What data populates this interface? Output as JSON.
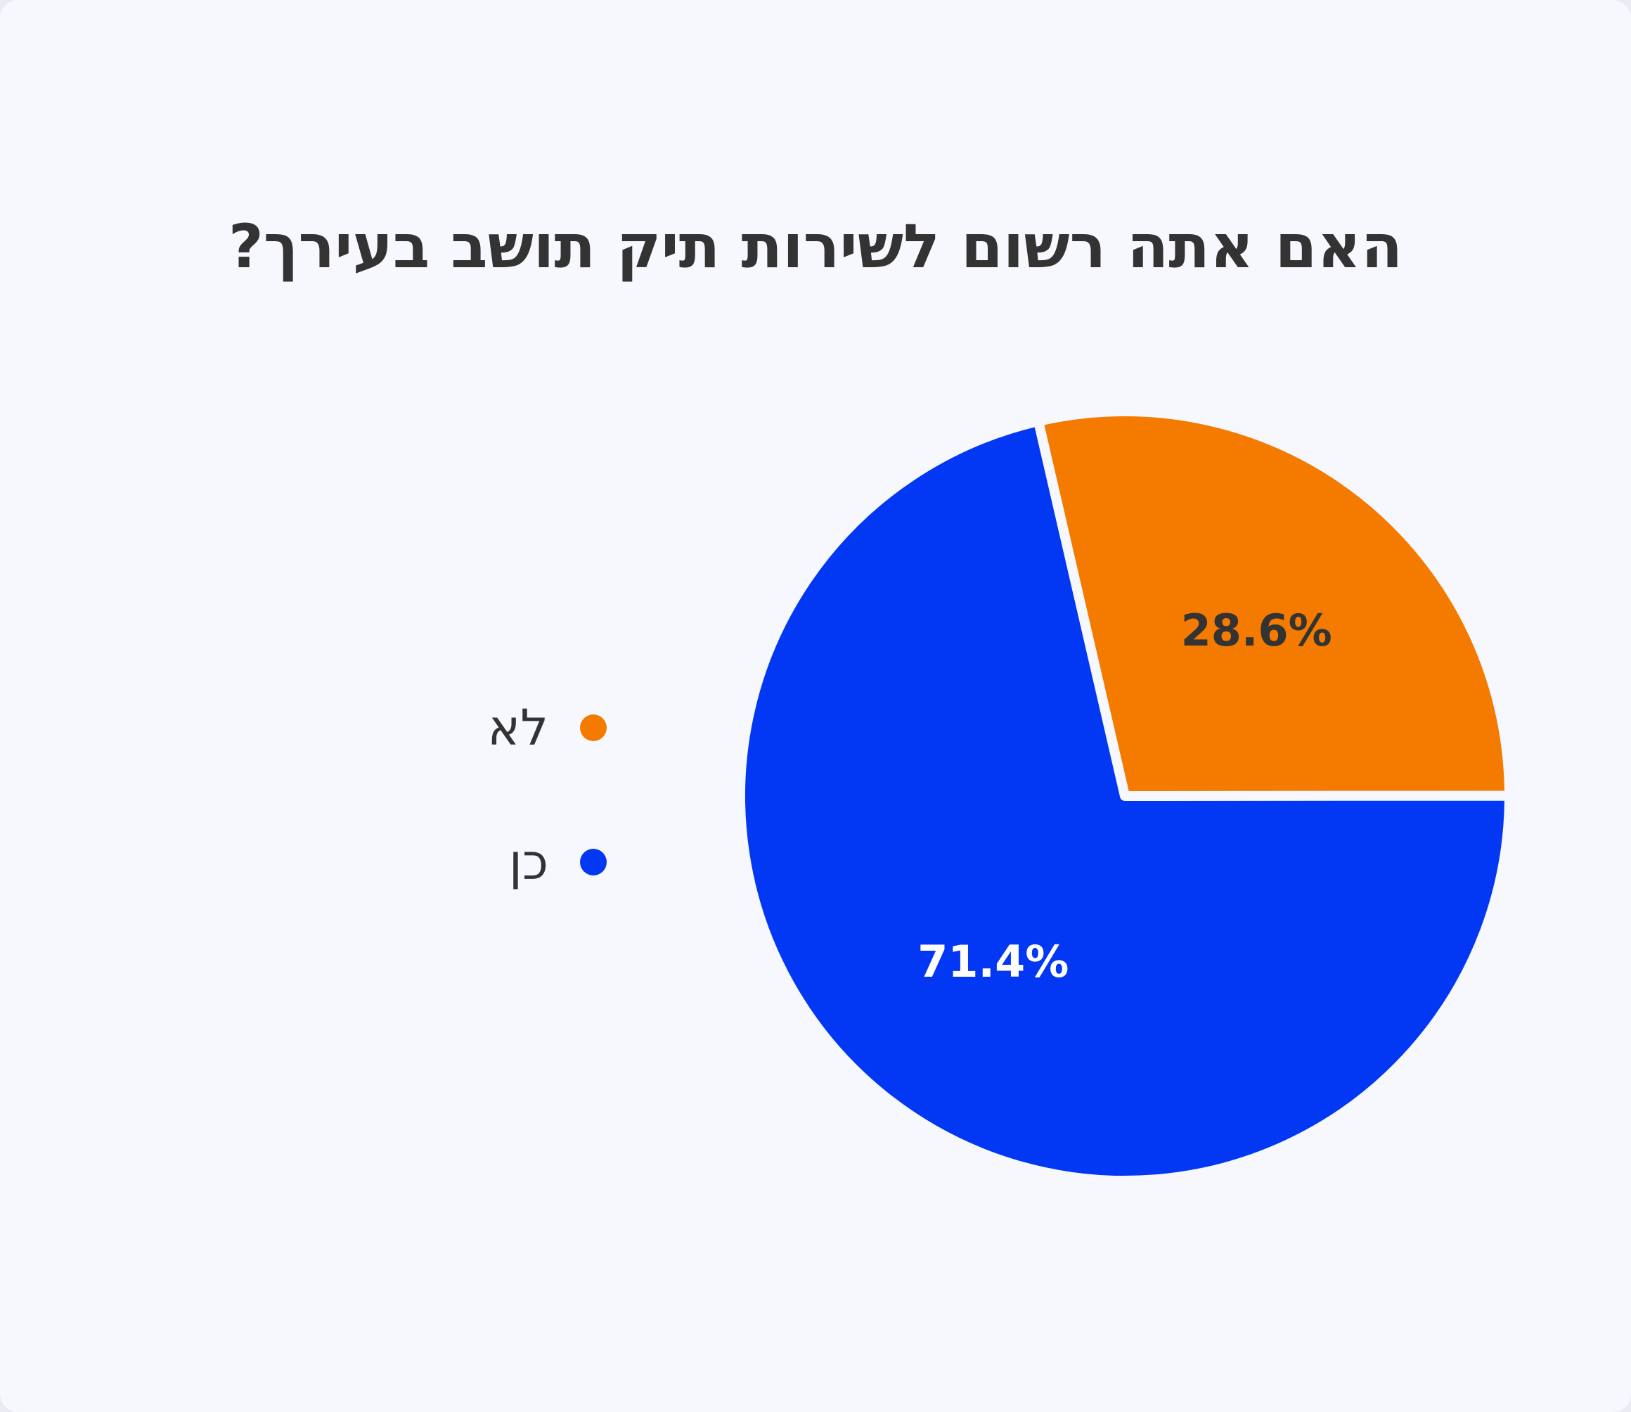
{
  "chart_data": {
    "type": "pie",
    "title": "האם אתה רשום לשירות תיק תושב בעירך?",
    "legend_position": "left",
    "slices": [
      {
        "label": "לא",
        "value": 28.6,
        "value_label": "28.6%",
        "color": "#f47a00",
        "text_color": "#333333"
      },
      {
        "label": "כן",
        "value": 71.4,
        "value_label": "71.4%",
        "color": "#0238f4",
        "text_color": "#ffffff"
      }
    ]
  }
}
